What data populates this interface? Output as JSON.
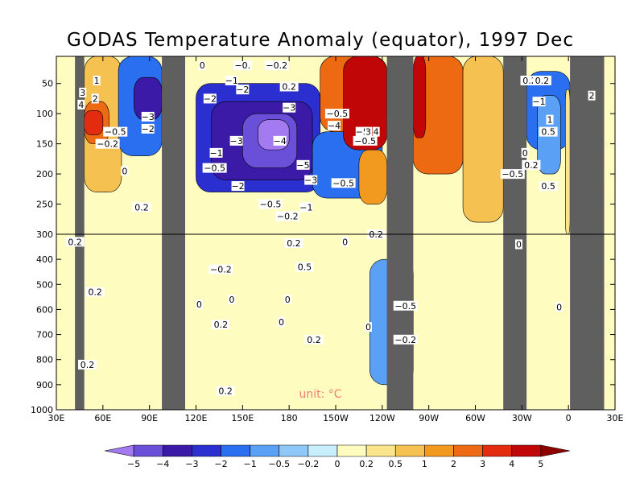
{
  "chart_data": {
    "type": "heatmap",
    "title": "GODAS Temperature Anomaly (equator), 1997 Dec",
    "xlabel": "",
    "ylabel": "",
    "units_label": "unit: °C",
    "x_ticks": [
      "30E",
      "60E",
      "90E",
      "120E",
      "150E",
      "180",
      "150W",
      "120W",
      "90W",
      "60W",
      "30W",
      "0",
      "30E"
    ],
    "x_tick_lon": [
      30,
      60,
      90,
      120,
      150,
      180,
      210,
      240,
      270,
      300,
      330,
      360,
      390
    ],
    "y_ticks_upper": [
      "50",
      "100",
      "150",
      "200",
      "250",
      "300"
    ],
    "y_ticks_upper_vals": [
      50,
      100,
      150,
      200,
      250,
      300
    ],
    "y_ticks_lower": [
      "400",
      "500",
      "600",
      "700",
      "800",
      "900",
      "1000"
    ],
    "y_ticks_lower_vals": [
      400,
      500,
      600,
      700,
      800,
      900,
      1000
    ],
    "xlim_lon": [
      30,
      390
    ],
    "ylim_depth": [
      5,
      1000
    ],
    "depth_break": 300,
    "colorbar": {
      "labels": [
        "-5",
        "-4",
        "-3",
        "-2",
        "-1",
        "-0.5",
        "-0.2",
        "0",
        "0.2",
        "0.5",
        "1",
        "2",
        "3",
        "4",
        "5"
      ],
      "colors": [
        "#a37af0",
        "#6a4fd8",
        "#3c1aa8",
        "#2b2fcf",
        "#2a6ff0",
        "#5aa0f5",
        "#8fc8f8",
        "#c9eefc",
        "#fffcc0",
        "#fbe58a",
        "#f5c150",
        "#f29a20",
        "#ee6a12",
        "#e32b10",
        "#c00606",
        "#8c0000"
      ]
    },
    "land_mask_lon": [
      [
        42,
        48
      ],
      [
        98,
        113
      ],
      [
        243,
        260
      ],
      [
        318,
        333
      ],
      [
        361,
        383
      ]
    ],
    "regions": [
      {
        "lon": [
          48,
          72
        ],
        "depth": [
          5,
          230
        ],
        "value": 1
      },
      {
        "lon": [
          48,
          64
        ],
        "depth": [
          80,
          150
        ],
        "value": 3
      },
      {
        "lon": [
          48,
          60
        ],
        "depth": [
          95,
          135
        ],
        "value": 4
      },
      {
        "lon": [
          70,
          98
        ],
        "depth": [
          5,
          170
        ],
        "value": -1
      },
      {
        "lon": [
          80,
          98
        ],
        "depth": [
          40,
          110
        ],
        "value": -3
      },
      {
        "lon": [
          120,
          200
        ],
        "depth": [
          50,
          230
        ],
        "value": -2
      },
      {
        "lon": [
          130,
          195
        ],
        "depth": [
          80,
          210
        ],
        "value": -3
      },
      {
        "lon": [
          150,
          185
        ],
        "depth": [
          100,
          190
        ],
        "value": -4
      },
      {
        "lon": [
          160,
          180
        ],
        "depth": [
          110,
          160
        ],
        "value": -5
      },
      {
        "lon": [
          195,
          240
        ],
        "depth": [
          130,
          240
        ],
        "value": -1
      },
      {
        "lon": [
          200,
          243
        ],
        "depth": [
          5,
          130
        ],
        "value": 3
      },
      {
        "lon": [
          215,
          243
        ],
        "depth": [
          5,
          160
        ],
        "value": 5
      },
      {
        "lon": [
          225,
          243
        ],
        "depth": [
          160,
          250
        ],
        "value": 2
      },
      {
        "lon": [
          260,
          292
        ],
        "depth": [
          5,
          200
        ],
        "value": 3
      },
      {
        "lon": [
          260,
          268
        ],
        "depth": [
          5,
          140
        ],
        "value": 5
      },
      {
        "lon": [
          292,
          318
        ],
        "depth": [
          5,
          280
        ],
        "value": 1
      },
      {
        "lon": [
          333,
          361
        ],
        "depth": [
          30,
          160
        ],
        "value": -1
      },
      {
        "lon": [
          340,
          355
        ],
        "depth": [
          70,
          200
        ],
        "value": -0.5
      },
      {
        "lon": [
          358,
          361
        ],
        "depth": [
          60,
          300
        ],
        "value": 0.5
      },
      {
        "lon": [
          232,
          260
        ],
        "depth": [
          400,
          900
        ],
        "value": -0.5
      }
    ],
    "contour_labels": [
      {
        "text": "1",
        "lon": 56,
        "depth": 45
      },
      {
        "text": "3",
        "lon": 47,
        "depth": 65
      },
      {
        "text": "2",
        "lon": 55,
        "depth": 75
      },
      {
        "text": "4",
        "lon": 46,
        "depth": 85
      },
      {
        "text": "−0.5",
        "lon": 68,
        "depth": 130
      },
      {
        "text": "−0.2",
        "lon": 63,
        "depth": 150
      },
      {
        "text": "−2",
        "lon": 89,
        "depth": 125
      },
      {
        "text": "−3",
        "lon": 89,
        "depth": 105
      },
      {
        "text": "0",
        "lon": 74,
        "depth": 195
      },
      {
        "text": "0.2",
        "lon": 85,
        "depth": 255
      },
      {
        "text": "0.2",
        "lon": 42,
        "depth": 330
      },
      {
        "text": "0.2",
        "lon": 55,
        "depth": 530
      },
      {
        "text": "0.2",
        "lon": 50,
        "depth": 820
      },
      {
        "text": "0",
        "lon": 124,
        "depth": 20
      },
      {
        "text": "−2",
        "lon": 129,
        "depth": 75
      },
      {
        "text": "−1",
        "lon": 143,
        "depth": 45
      },
      {
        "text": "−0.2",
        "lon": 172,
        "depth": 20
      },
      {
        "text": "−0.",
        "lon": 150,
        "depth": 20
      },
      {
        "text": "−2",
        "lon": 150,
        "depth": 60
      },
      {
        "text": "0.2",
        "lon": 180,
        "depth": 55
      },
      {
        "text": "−3",
        "lon": 180,
        "depth": 90
      },
      {
        "text": "−3",
        "lon": 146,
        "depth": 145
      },
      {
        "text": "−4",
        "lon": 174,
        "depth": 145
      },
      {
        "text": "−1",
        "lon": 133,
        "depth": 165
      },
      {
        "text": "−0.5",
        "lon": 132,
        "depth": 190
      },
      {
        "text": "−2",
        "lon": 147,
        "depth": 220
      },
      {
        "text": "−5",
        "lon": 189,
        "depth": 185
      },
      {
        "text": "−3",
        "lon": 194,
        "depth": 210
      },
      {
        "text": "−0.5",
        "lon": 215,
        "depth": 215
      },
      {
        "text": "−0.5",
        "lon": 211,
        "depth": 100
      },
      {
        "text": "−4",
        "lon": 209,
        "depth": 120
      },
      {
        "text": "−0.5",
        "lon": 168,
        "depth": 250
      },
      {
        "text": "−1",
        "lon": 191,
        "depth": 255
      },
      {
        "text": "−0.2",
        "lon": 179,
        "depth": 270
      },
      {
        "text": "−5",
        "lon": 227,
        "depth": 130
      },
      {
        "text": "3",
        "lon": 231,
        "depth": 130
      },
      {
        "text": "4",
        "lon": 236,
        "depth": 130
      },
      {
        "text": "−0.5",
        "lon": 229,
        "depth": 145
      },
      {
        "text": "0.2",
        "lon": 183,
        "depth": 335
      },
      {
        "text": "0",
        "lon": 216,
        "depth": 330
      },
      {
        "text": "0.2",
        "lon": 236,
        "depth": 300
      },
      {
        "text": "0.5",
        "lon": 190,
        "depth": 430
      },
      {
        "text": "0",
        "lon": 179,
        "depth": 560
      },
      {
        "text": "0",
        "lon": 175,
        "depth": 650
      },
      {
        "text": "0.2",
        "lon": 196,
        "depth": 720
      },
      {
        "text": "0",
        "lon": 231,
        "depth": 670
      },
      {
        "text": "−0.5",
        "lon": 255,
        "depth": 585
      },
      {
        "text": "−0.2",
        "lon": 255,
        "depth": 720
      },
      {
        "text": "0",
        "lon": 143,
        "depth": 560
      },
      {
        "text": "−0.2",
        "lon": 136,
        "depth": 440
      },
      {
        "text": "0",
        "lon": 122,
        "depth": 580
      },
      {
        "text": "0.2",
        "lon": 139,
        "depth": 925
      },
      {
        "text": "0.2",
        "lon": 136,
        "depth": 660
      },
      {
        "text": "0.2",
        "lon": 335,
        "depth": 45
      },
      {
        "text": "0.2",
        "lon": 343,
        "depth": 45
      },
      {
        "text": "−1",
        "lon": 341,
        "depth": 80
      },
      {
        "text": "1",
        "lon": 348,
        "depth": 110
      },
      {
        "text": "0.5",
        "lon": 347,
        "depth": 130
      },
      {
        "text": "2",
        "lon": 375,
        "depth": 70
      },
      {
        "text": "0",
        "lon": 332,
        "depth": 165
      },
      {
        "text": "0.2",
        "lon": 336,
        "depth": 185
      },
      {
        "text": "−0.5",
        "lon": 324,
        "depth": 200
      },
      {
        "text": "0.5",
        "lon": 347,
        "depth": 220
      },
      {
        "text": "0",
        "lon": 328,
        "depth": 340
      },
      {
        "text": "0",
        "lon": 354,
        "depth": 590
      }
    ]
  }
}
